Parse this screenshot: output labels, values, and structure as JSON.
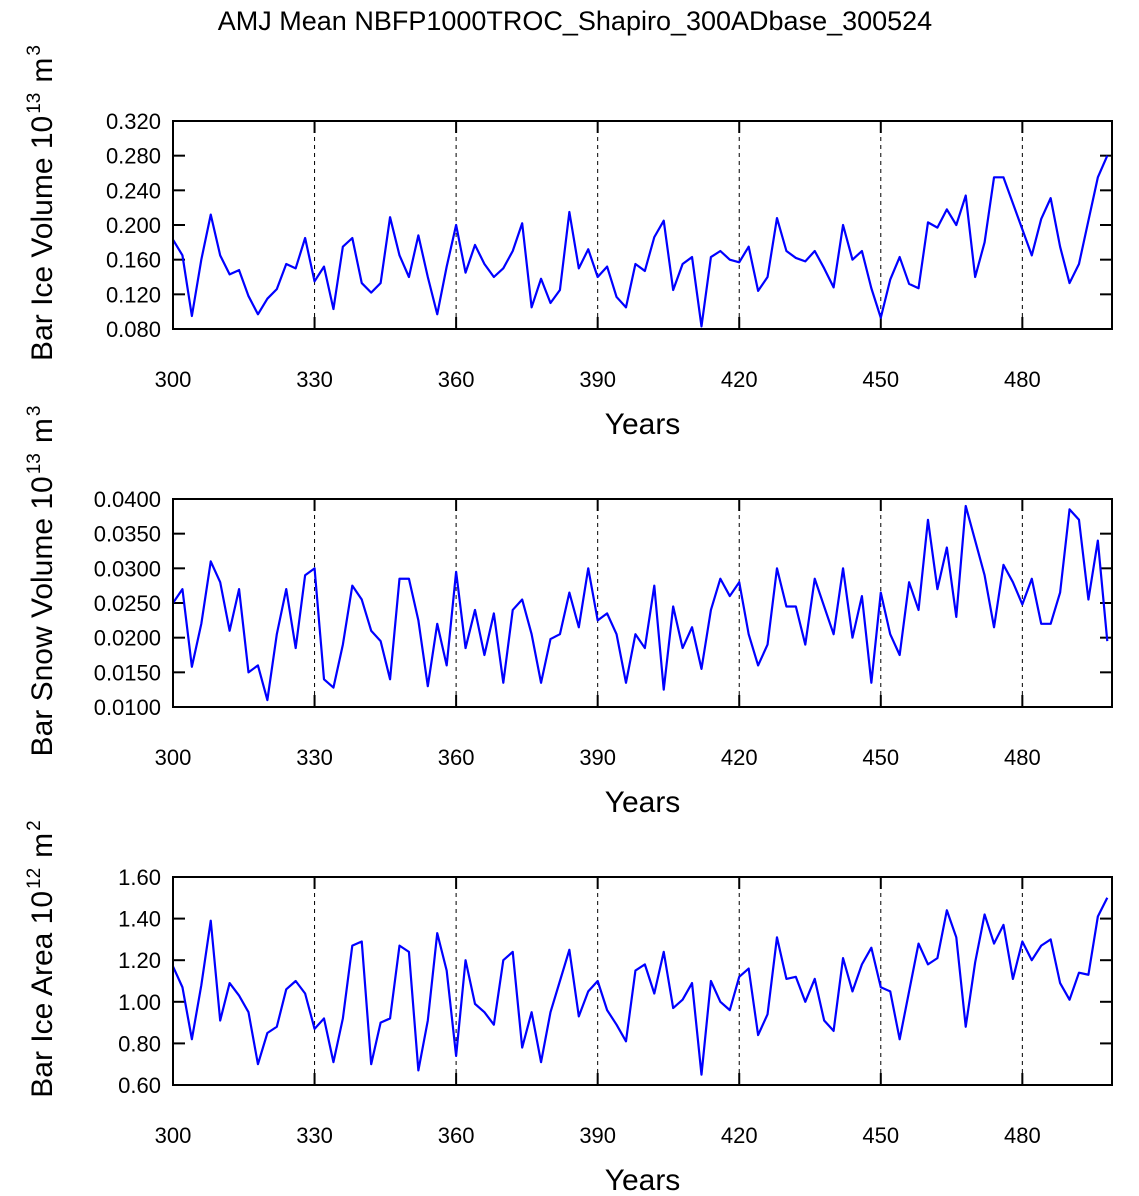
{
  "title": "AMJ Mean NBFP1000TROC_Shapiro_300ADbase_300524",
  "chart_data": [
    {
      "type": "line",
      "xlabel": "Years",
      "ylabel": [
        "Bar Ice Volume 10",
        "13",
        "m",
        "3"
      ],
      "xlim": [
        300,
        499
      ],
      "xticks": [
        300,
        330,
        360,
        390,
        420,
        450,
        480
      ],
      "grid": "x-dashed",
      "ylim": [
        0.08,
        0.32
      ],
      "yticks": [
        {
          "value": 0.08,
          "label": "0.080"
        },
        {
          "value": 0.12,
          "label": "0.120"
        },
        {
          "value": 0.16,
          "label": "0.160"
        },
        {
          "value": 0.2,
          "label": "0.200"
        },
        {
          "value": 0.24,
          "label": "0.240"
        },
        {
          "value": 0.28,
          "label": "0.280"
        },
        {
          "value": 0.32,
          "label": "0.320"
        }
      ],
      "x": [
        300,
        302,
        304,
        306,
        308,
        310,
        312,
        314,
        316,
        318,
        320,
        322,
        324,
        326,
        328,
        330,
        332,
        334,
        336,
        338,
        340,
        342,
        344,
        346,
        348,
        350,
        352,
        354,
        356,
        358,
        360,
        362,
        364,
        366,
        368,
        370,
        372,
        374,
        376,
        378,
        380,
        382,
        384,
        386,
        388,
        390,
        392,
        394,
        396,
        398,
        400,
        402,
        404,
        406,
        408,
        410,
        412,
        414,
        416,
        418,
        420,
        422,
        424,
        426,
        428,
        430,
        432,
        434,
        436,
        438,
        440,
        442,
        444,
        446,
        448,
        450,
        452,
        454,
        456,
        458,
        460,
        462,
        464,
        466,
        468,
        470,
        472,
        474,
        476,
        478,
        480,
        482,
        484,
        486,
        488,
        490,
        492,
        494,
        496,
        498
      ],
      "series": [
        {
          "color": "#0000ff",
          "values": [
            0.183,
            0.165,
            0.095,
            0.16,
            0.212,
            0.165,
            0.143,
            0.148,
            0.118,
            0.097,
            0.115,
            0.126,
            0.155,
            0.15,
            0.185,
            0.135,
            0.152,
            0.103,
            0.175,
            0.185,
            0.133,
            0.122,
            0.133,
            0.209,
            0.165,
            0.14,
            0.188,
            0.14,
            0.097,
            0.152,
            0.2,
            0.145,
            0.177,
            0.155,
            0.14,
            0.15,
            0.17,
            0.202,
            0.105,
            0.138,
            0.11,
            0.125,
            0.215,
            0.15,
            0.172,
            0.14,
            0.152,
            0.117,
            0.105,
            0.155,
            0.147,
            0.186,
            0.205,
            0.125,
            0.155,
            0.163,
            0.083,
            0.163,
            0.17,
            0.16,
            0.157,
            0.175,
            0.124,
            0.14,
            0.208,
            0.17,
            0.162,
            0.158,
            0.17,
            0.15,
            0.128,
            0.2,
            0.16,
            0.17,
            0.127,
            0.093,
            0.137,
            0.163,
            0.132,
            0.127,
            0.203,
            0.197,
            0.218,
            0.2,
            0.234,
            0.14,
            0.18,
            0.255,
            0.255,
            0.225,
            0.195,
            0.165,
            0.207,
            0.231,
            0.175,
            0.133,
            0.155,
            0.205,
            0.255,
            0.28
          ]
        }
      ]
    },
    {
      "type": "line",
      "xlabel": "Years",
      "ylabel": [
        "Bar Snow Volume 10",
        "13",
        "m",
        "3"
      ],
      "xlim": [
        300,
        499
      ],
      "xticks": [
        300,
        330,
        360,
        390,
        420,
        450,
        480
      ],
      "grid": "x-dashed",
      "ylim": [
        0.01,
        0.04
      ],
      "yticks": [
        {
          "value": 0.01,
          "label": "0.0100"
        },
        {
          "value": 0.015,
          "label": "0.0150"
        },
        {
          "value": 0.02,
          "label": "0.0200"
        },
        {
          "value": 0.025,
          "label": "0.0250"
        },
        {
          "value": 0.03,
          "label": "0.0300"
        },
        {
          "value": 0.035,
          "label": "0.0350"
        },
        {
          "value": 0.04,
          "label": "0.0400"
        }
      ],
      "x": [
        300,
        302,
        304,
        306,
        308,
        310,
        312,
        314,
        316,
        318,
        320,
        322,
        324,
        326,
        328,
        330,
        332,
        334,
        336,
        338,
        340,
        342,
        344,
        346,
        348,
        350,
        352,
        354,
        356,
        358,
        360,
        362,
        364,
        366,
        368,
        370,
        372,
        374,
        376,
        378,
        380,
        382,
        384,
        386,
        388,
        390,
        392,
        394,
        396,
        398,
        400,
        402,
        404,
        406,
        408,
        410,
        412,
        414,
        416,
        418,
        420,
        422,
        424,
        426,
        428,
        430,
        432,
        434,
        436,
        438,
        440,
        442,
        444,
        446,
        448,
        450,
        452,
        454,
        456,
        458,
        460,
        462,
        464,
        466,
        468,
        470,
        472,
        474,
        476,
        478,
        480,
        482,
        484,
        486,
        488,
        490,
        492,
        494,
        496,
        498
      ],
      "series": [
        {
          "color": "#0000ff",
          "values": [
            0.025,
            0.027,
            0.0158,
            0.022,
            0.031,
            0.028,
            0.021,
            0.027,
            0.015,
            0.016,
            0.011,
            0.0205,
            0.027,
            0.0185,
            0.029,
            0.03,
            0.014,
            0.0128,
            0.019,
            0.0275,
            0.0255,
            0.021,
            0.0195,
            0.014,
            0.0285,
            0.0285,
            0.0225,
            0.013,
            0.022,
            0.016,
            0.0295,
            0.0185,
            0.024,
            0.0175,
            0.0235,
            0.0135,
            0.024,
            0.0255,
            0.0205,
            0.0135,
            0.0198,
            0.0205,
            0.0265,
            0.0215,
            0.03,
            0.0225,
            0.0235,
            0.0205,
            0.0135,
            0.0205,
            0.0185,
            0.0275,
            0.0125,
            0.0245,
            0.0185,
            0.0215,
            0.0155,
            0.024,
            0.0285,
            0.026,
            0.028,
            0.0205,
            0.016,
            0.019,
            0.03,
            0.0245,
            0.0245,
            0.019,
            0.0285,
            0.0245,
            0.0205,
            0.03,
            0.02,
            0.026,
            0.0135,
            0.0265,
            0.0205,
            0.0175,
            0.028,
            0.024,
            0.037,
            0.027,
            0.033,
            0.023,
            0.039,
            0.034,
            0.029,
            0.0215,
            0.0305,
            0.028,
            0.0248,
            0.0285,
            0.022,
            0.022,
            0.0265,
            0.0385,
            0.037,
            0.0255,
            0.034,
            0.0195
          ]
        }
      ]
    },
    {
      "type": "line",
      "xlabel": "Years",
      "ylabel": [
        "Bar Ice Area 10",
        "12",
        "m",
        "2"
      ],
      "xlim": [
        300,
        499
      ],
      "xticks": [
        300,
        330,
        360,
        390,
        420,
        450,
        480
      ],
      "grid": "x-dashed",
      "ylim": [
        0.6,
        1.6
      ],
      "yticks": [
        {
          "value": 0.6,
          "label": "0.60"
        },
        {
          "value": 0.8,
          "label": "0.80"
        },
        {
          "value": 1,
          "label": "1.00"
        },
        {
          "value": 1.2,
          "label": "1.20"
        },
        {
          "value": 1.4,
          "label": "1.40"
        },
        {
          "value": 1.6,
          "label": "1.60"
        }
      ],
      "x": [
        300,
        302,
        304,
        306,
        308,
        310,
        312,
        314,
        316,
        318,
        320,
        322,
        324,
        326,
        328,
        330,
        332,
        334,
        336,
        338,
        340,
        342,
        344,
        346,
        348,
        350,
        352,
        354,
        356,
        358,
        360,
        362,
        364,
        366,
        368,
        370,
        372,
        374,
        376,
        378,
        380,
        382,
        384,
        386,
        388,
        390,
        392,
        394,
        396,
        398,
        400,
        402,
        404,
        406,
        408,
        410,
        412,
        414,
        416,
        418,
        420,
        422,
        424,
        426,
        428,
        430,
        432,
        434,
        436,
        438,
        440,
        442,
        444,
        446,
        448,
        450,
        452,
        454,
        456,
        458,
        460,
        462,
        464,
        466,
        468,
        470,
        472,
        474,
        476,
        478,
        480,
        482,
        484,
        486,
        488,
        490,
        492,
        494,
        496,
        498
      ],
      "series": [
        {
          "color": "#0000ff",
          "values": [
            1.17,
            1.07,
            0.82,
            1.08,
            1.39,
            0.91,
            1.09,
            1.03,
            0.95,
            0.7,
            0.85,
            0.88,
            1.06,
            1.1,
            1.04,
            0.87,
            0.92,
            0.71,
            0.92,
            1.27,
            1.29,
            0.7,
            0.9,
            0.92,
            1.27,
            1.24,
            0.67,
            0.91,
            1.33,
            1.15,
            0.74,
            1.2,
            0.99,
            0.95,
            0.89,
            1.2,
            1.24,
            0.78,
            0.95,
            0.71,
            0.95,
            1.1,
            1.25,
            0.93,
            1.05,
            1.1,
            0.96,
            0.89,
            0.81,
            1.15,
            1.18,
            1.04,
            1.24,
            0.97,
            1.01,
            1.09,
            0.65,
            1.1,
            1,
            0.96,
            1.12,
            1.16,
            0.84,
            0.94,
            1.31,
            1.11,
            1.12,
            1,
            1.11,
            0.91,
            0.86,
            1.21,
            1.05,
            1.18,
            1.26,
            1.07,
            1.05,
            0.82,
            1.05,
            1.28,
            1.18,
            1.21,
            1.44,
            1.31,
            0.88,
            1.19,
            1.42,
            1.28,
            1.37,
            1.11,
            1.29,
            1.2,
            1.27,
            1.3,
            1.09,
            1.01,
            1.14,
            1.13,
            1.41,
            1.5
          ]
        }
      ]
    }
  ]
}
